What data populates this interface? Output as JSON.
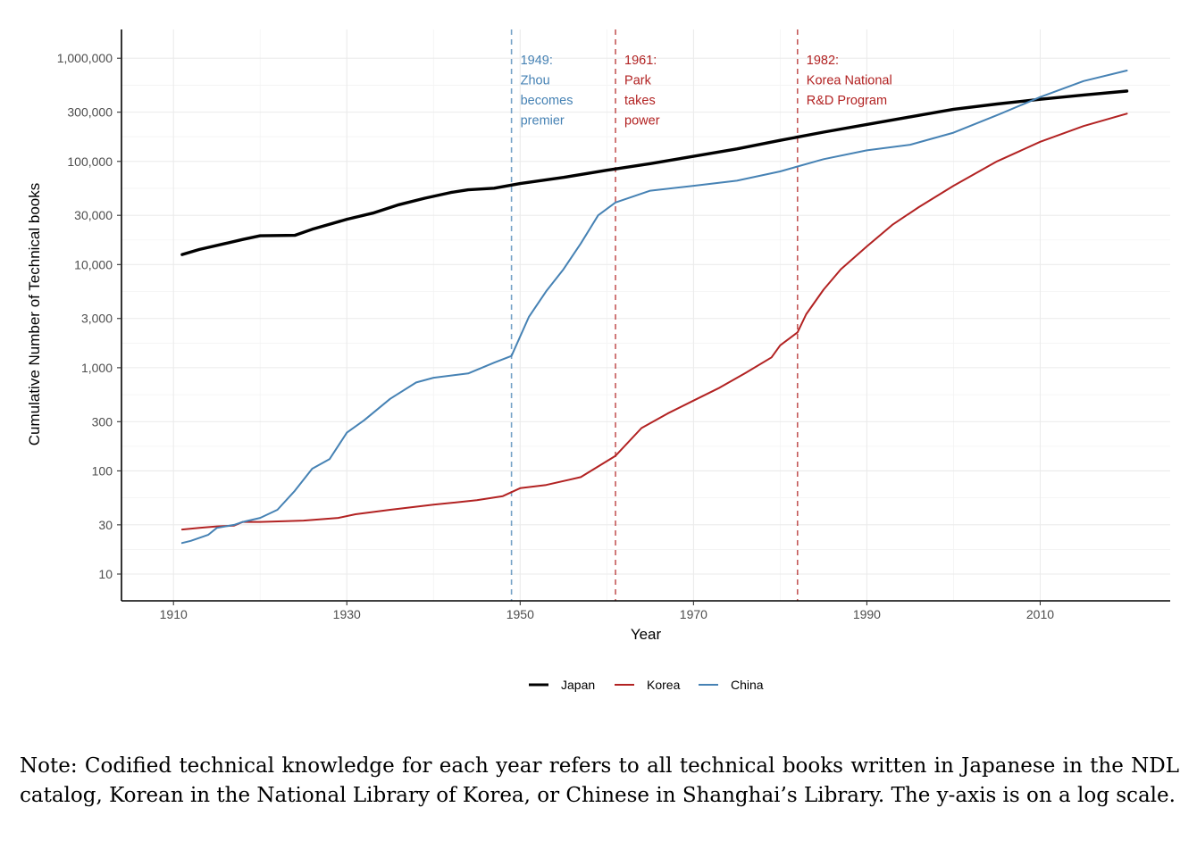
{
  "chart_data": {
    "type": "line",
    "xlabel": "Year",
    "ylabel": "Cumulative Number of Technical books",
    "y_scale": "log",
    "xlim": [
      1904,
      2025
    ],
    "ylim": [
      5.5,
      1900000
    ],
    "x_ticks": [
      1910,
      1930,
      1950,
      1970,
      1990,
      2010
    ],
    "x_tick_labels": [
      "1910",
      "1930",
      "1950",
      "1970",
      "1990",
      "2010"
    ],
    "y_ticks": [
      10,
      30,
      100,
      300,
      1000,
      3000,
      10000,
      30000,
      100000,
      300000,
      1000000
    ],
    "y_tick_labels": [
      "10",
      "30",
      "100",
      "300",
      "1,000",
      "3,000",
      "10,000",
      "30,000",
      "100,000",
      "300,000",
      "1,000,000"
    ],
    "grid": true,
    "legend_position": "bottom",
    "series": [
      {
        "name": "Japan",
        "color": "#000000",
        "x": [
          1911,
          1913,
          1916,
          1918,
          1920,
          1924,
          1926,
          1930,
          1933,
          1936,
          1939,
          1942,
          1944,
          1947,
          1950,
          1955,
          1960,
          1965,
          1970,
          1975,
          1980,
          1985,
          1990,
          1995,
          2000,
          2005,
          2010,
          2015,
          2020
        ],
        "y": [
          12500,
          14000,
          16000,
          17500,
          19000,
          19200,
          22000,
          27500,
          31500,
          38000,
          44000,
          50000,
          53000,
          55000,
          61000,
          70000,
          82000,
          95000,
          112000,
          132000,
          160000,
          192000,
          228000,
          270000,
          320000,
          360000,
          400000,
          440000,
          480000
        ]
      },
      {
        "name": "Korea",
        "color": "#b22222",
        "x": [
          1911,
          1913,
          1915,
          1917,
          1918,
          1920,
          1925,
          1929,
          1931,
          1935,
          1940,
          1945,
          1948,
          1950,
          1953,
          1957,
          1961,
          1964,
          1967,
          1970,
          1973,
          1976,
          1979,
          1980,
          1982,
          1983,
          1985,
          1987,
          1990,
          1993,
          1996,
          2000,
          2005,
          2010,
          2015,
          2020
        ],
        "y": [
          27,
          28,
          29,
          29.5,
          32,
          32,
          33,
          35,
          38,
          42,
          47,
          52,
          57,
          68,
          73,
          87,
          140,
          260,
          360,
          480,
          640,
          890,
          1260,
          1650,
          2200,
          3300,
          5700,
          9000,
          15000,
          24500,
          36000,
          58000,
          100000,
          155000,
          220000,
          290000
        ]
      },
      {
        "name": "China",
        "color": "#4682b4",
        "x": [
          1911,
          1912,
          1914,
          1915,
          1917,
          1918,
          1920,
          1922,
          1924,
          1926,
          1928,
          1930,
          1932,
          1935,
          1938,
          1940,
          1944,
          1947,
          1949,
          1951,
          1953,
          1955,
          1957,
          1959,
          1961,
          1965,
          1970,
          1975,
          1980,
          1985,
          1990,
          1995,
          2000,
          2005,
          2010,
          2015,
          2020
        ],
        "y": [
          20,
          21,
          24,
          28,
          30,
          32,
          35,
          42,
          64,
          105,
          130,
          235,
          310,
          500,
          720,
          800,
          880,
          1120,
          1300,
          3100,
          5500,
          9000,
          16000,
          30000,
          40000,
          52000,
          58000,
          65000,
          80000,
          105000,
          128000,
          145000,
          190000,
          280000,
          420000,
          600000,
          760000
        ]
      }
    ],
    "annotations": [
      {
        "x": 1949,
        "color": "#4682b4",
        "lines": [
          "1949:",
          "Zhou",
          "becomes",
          "premier"
        ]
      },
      {
        "x": 1961,
        "color": "#b22222",
        "lines": [
          "1961:",
          "Park",
          "takes",
          "power"
        ]
      },
      {
        "x": 1982,
        "color": "#b22222",
        "lines": [
          "1982:",
          "Korea National",
          "R&D Program"
        ]
      }
    ]
  },
  "note": "Note: Codified technical knowledge for each year refers to all technical books written in Japanese in the NDL catalog, Korean in the National Library of Korea, or Chinese in Shanghai’s Library. The y-axis is on a log scale."
}
